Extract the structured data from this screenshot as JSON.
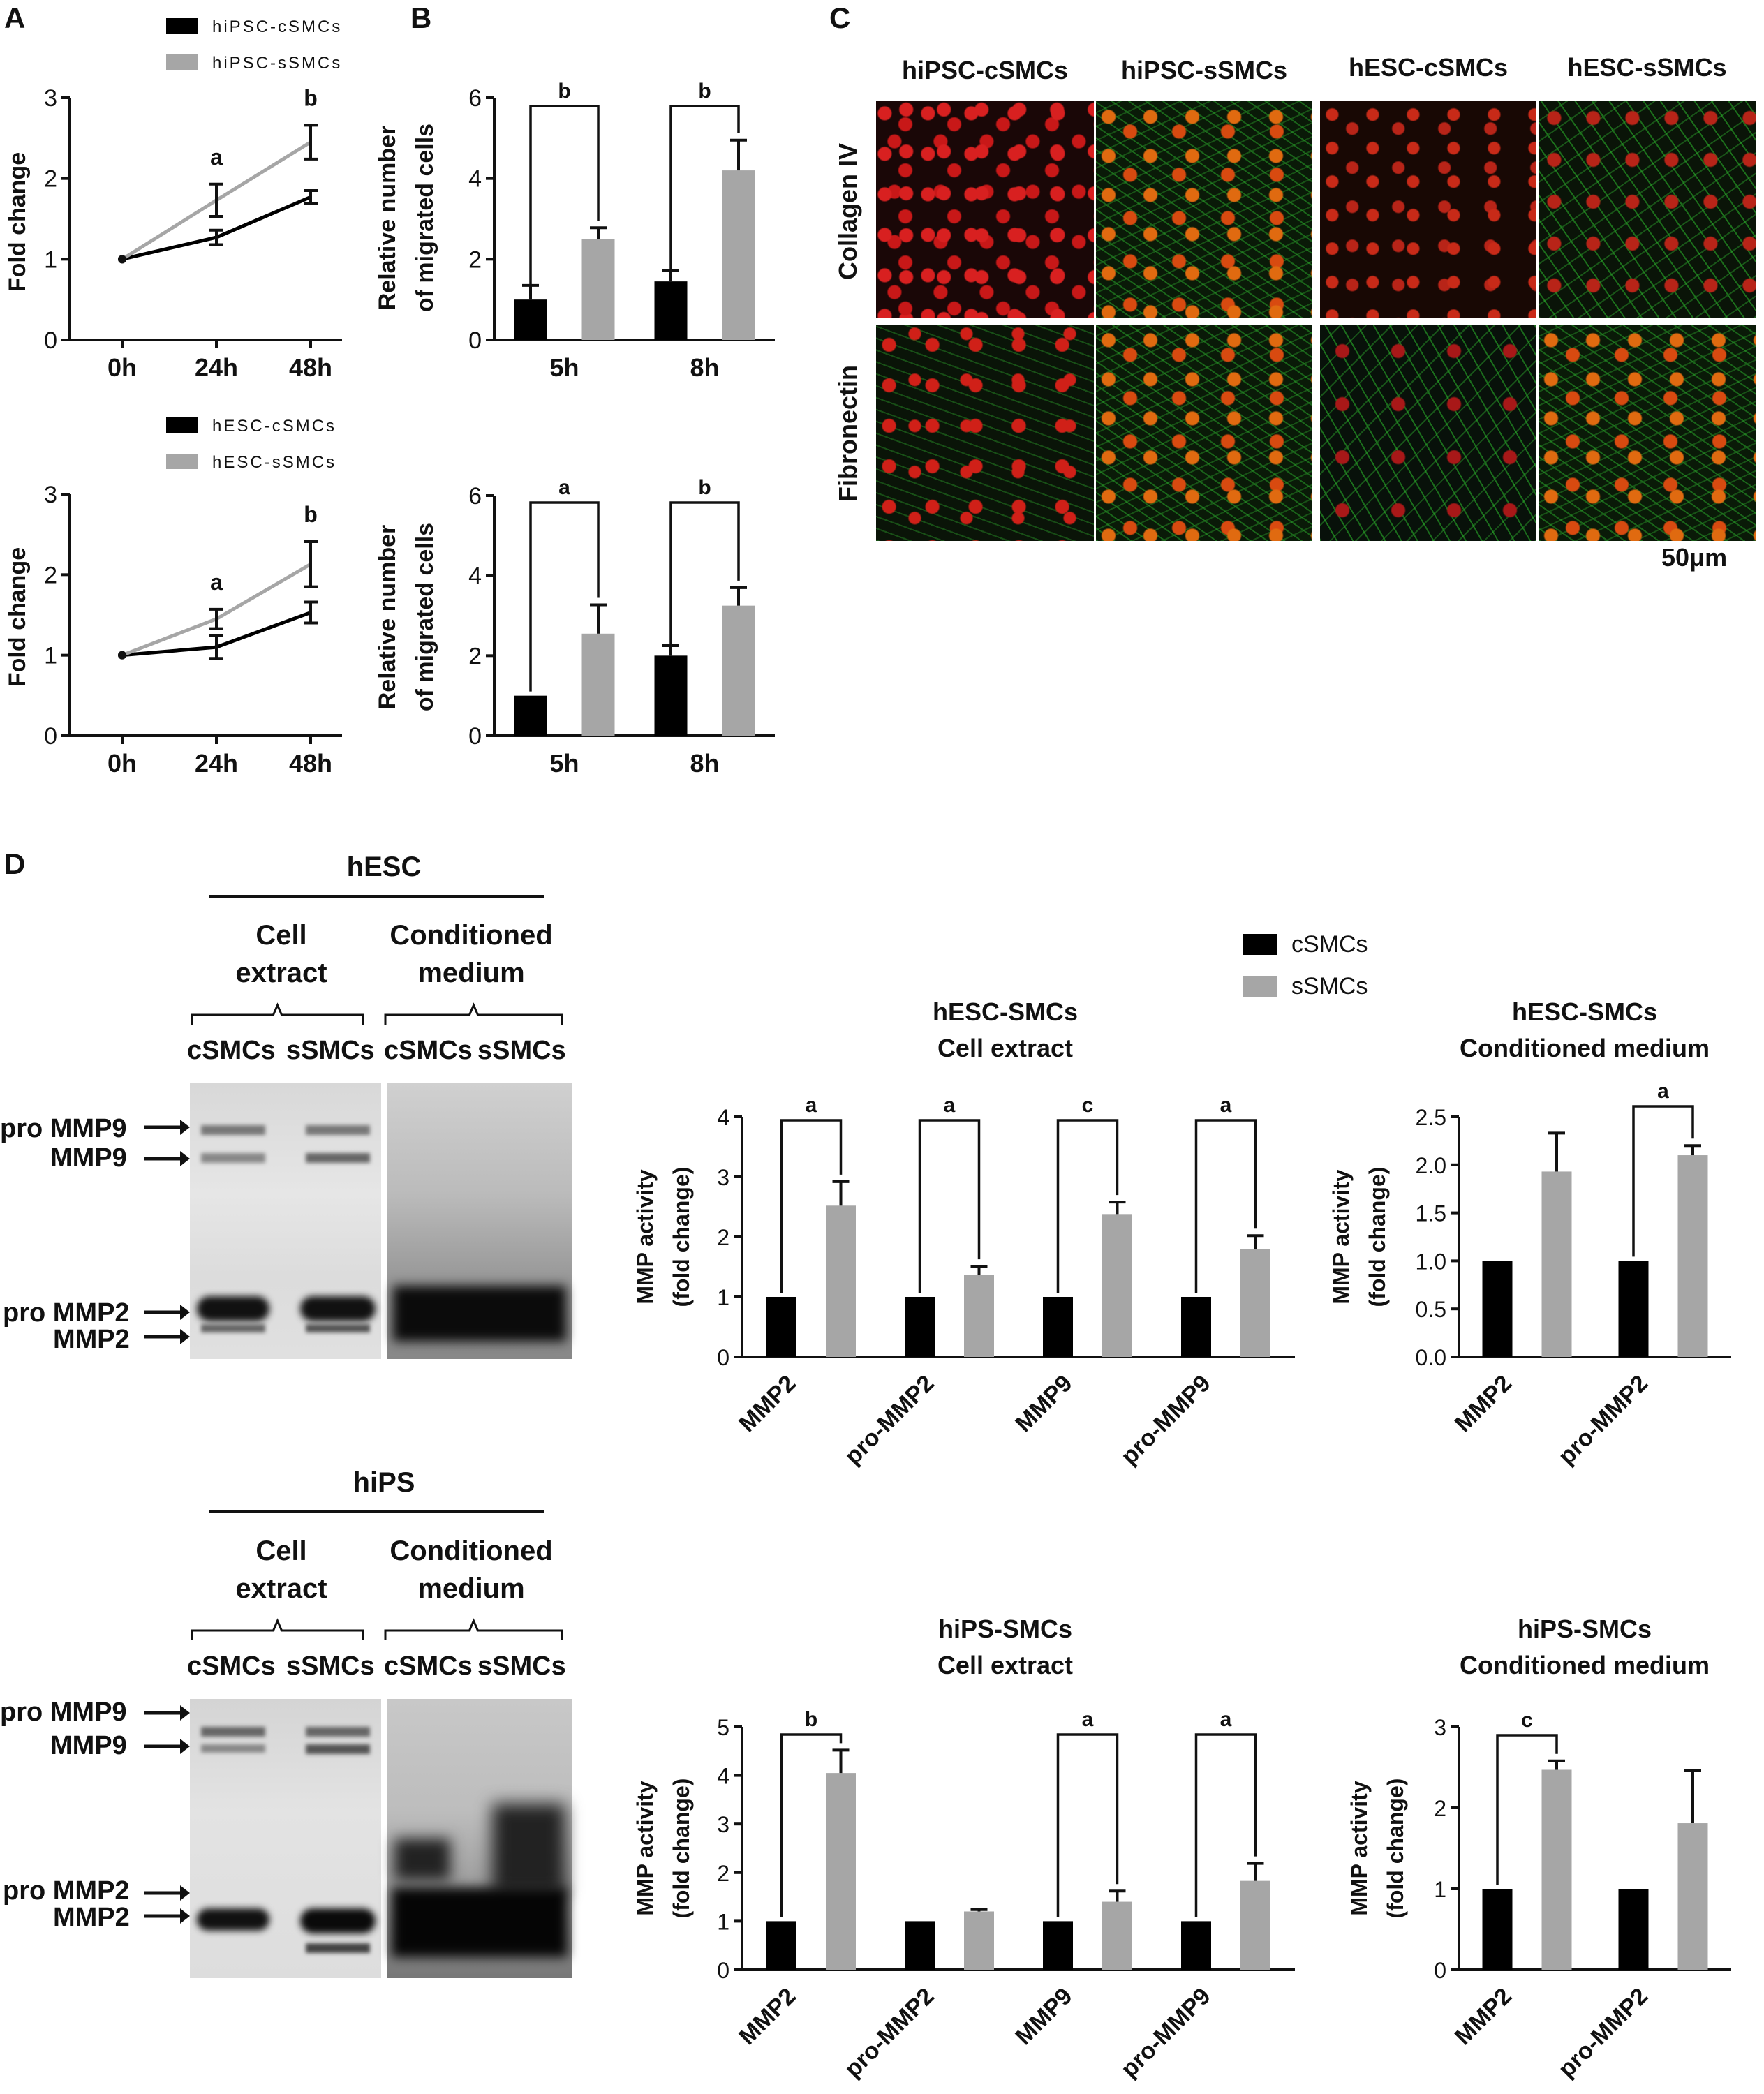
{
  "panels": {
    "A": "A",
    "B": "B",
    "C": "C",
    "D": "D"
  },
  "colors": {
    "c": "#000000",
    "s": "#a6a6a6"
  },
  "panelA_top": {
    "legend": [
      "hiPSC-cSMCs",
      "hiPSC-sSMCs"
    ],
    "ylabel": "Fold change"
  },
  "panelA_bottom": {
    "legend": [
      "hESC-cSMCs",
      "hESC-sSMCs"
    ],
    "ylabel": "Fold change"
  },
  "panelB": {
    "ylabel_line1": "Relative number",
    "ylabel_line2": "of migrated cells"
  },
  "panelC": {
    "columns": [
      "hiPSC-cSMCs",
      "hiPSC-sSMCs",
      "hESC-cSMCs",
      "hESC-sSMCs"
    ],
    "rows": [
      "Collagen IV",
      "Fibronectin"
    ],
    "scale_bar": "50μm"
  },
  "panelD": {
    "gels": [
      {
        "title": "hESC",
        "groups": [
          [
            "Cell",
            "extract"
          ],
          [
            "Conditioned",
            "medium"
          ]
        ],
        "lanes": [
          "cSMCs",
          "sSMCs",
          "cSMCs",
          "sSMCs"
        ],
        "bands": [
          "pro MMP9",
          "MMP9",
          "pro MMP2",
          "MMP2"
        ]
      },
      {
        "title": "hiPS",
        "groups": [
          [
            "Cell",
            "extract"
          ],
          [
            "Conditioned",
            "medium"
          ]
        ],
        "lanes": [
          "cSMCs",
          "sSMCs",
          "cSMCs",
          "sSMCs"
        ],
        "bands": [
          "pro MMP9",
          "MMP9",
          "pro MMP2",
          "MMP2"
        ]
      }
    ],
    "legend": [
      "cSMCs",
      "sSMCs"
    ],
    "ylabel_line1": "MMP activity",
    "ylabel_line2": "(fold change)"
  },
  "chart_data": [
    {
      "id": "A_top",
      "type": "line",
      "x": [
        "0h",
        "24h",
        "48h"
      ],
      "series": [
        {
          "name": "hiPSC-cSMCs",
          "values": [
            1.0,
            1.27,
            1.77
          ],
          "err": [
            0,
            0.09,
            0.08
          ]
        },
        {
          "name": "hiPSC-sSMCs",
          "values": [
            1.0,
            1.73,
            2.45
          ],
          "err": [
            0,
            0.2,
            0.21
          ]
        }
      ],
      "ylim": [
        0,
        3
      ],
      "yticks": [
        0,
        1,
        2,
        3
      ],
      "annotations": [
        {
          "x": "24h",
          "label": "a"
        },
        {
          "x": "48h",
          "label": "b"
        }
      ]
    },
    {
      "id": "A_bottom",
      "type": "line",
      "x": [
        "0h",
        "24h",
        "48h"
      ],
      "series": [
        {
          "name": "hESC-cSMCs",
          "values": [
            1.0,
            1.1,
            1.53
          ],
          "err": [
            0,
            0.14,
            0.13
          ]
        },
        {
          "name": "hESC-sSMCs",
          "values": [
            1.0,
            1.45,
            2.13
          ],
          "err": [
            0,
            0.12,
            0.28
          ]
        }
      ],
      "ylim": [
        0,
        3
      ],
      "yticks": [
        0,
        1,
        2,
        3
      ],
      "annotations": [
        {
          "x": "24h",
          "label": "a"
        },
        {
          "x": "48h",
          "label": "b"
        }
      ]
    },
    {
      "id": "B_top",
      "type": "bar",
      "categories": [
        "5h",
        "8h"
      ],
      "series": [
        {
          "values": [
            1.0,
            1.45
          ],
          "err": [
            0.35,
            0.28
          ]
        },
        {
          "values": [
            2.5,
            4.2
          ],
          "err": [
            0.28,
            0.75
          ]
        }
      ],
      "ylim": [
        0,
        6
      ],
      "yticks": [
        0,
        2,
        4,
        6
      ],
      "brackets": [
        {
          "category": "5h",
          "label": "b"
        },
        {
          "category": "8h",
          "label": "b"
        }
      ]
    },
    {
      "id": "B_bottom",
      "type": "bar",
      "categories": [
        "5h",
        "8h"
      ],
      "series": [
        {
          "values": [
            1.0,
            2.0
          ],
          "err": [
            0,
            0.25
          ]
        },
        {
          "values": [
            2.55,
            3.25
          ],
          "err": [
            0.72,
            0.45
          ]
        }
      ],
      "ylim": [
        0,
        6
      ],
      "yticks": [
        0,
        2,
        4,
        6
      ],
      "brackets": [
        {
          "category": "5h",
          "label": "a"
        },
        {
          "category": "8h",
          "label": "b"
        }
      ]
    },
    {
      "id": "D_hESC_cell",
      "type": "bar",
      "title": [
        "hESC-SMCs",
        "Cell extract"
      ],
      "categories": [
        "MMP2",
        "pro-MMP2",
        "MMP9",
        "pro-MMP9"
      ],
      "series": [
        {
          "name": "cSMCs",
          "values": [
            1,
            1,
            1,
            1
          ],
          "err": [
            0,
            0,
            0,
            0
          ]
        },
        {
          "name": "sSMCs",
          "values": [
            2.52,
            1.37,
            2.38,
            1.8
          ],
          "err": [
            0.4,
            0.14,
            0.2,
            0.22
          ]
        }
      ],
      "ylim": [
        0,
        4
      ],
      "yticks": [
        "0",
        "1",
        "2",
        "3",
        "4"
      ],
      "brackets": [
        {
          "category": "MMP2",
          "label": "a"
        },
        {
          "category": "pro-MMP2",
          "label": "a"
        },
        {
          "category": "MMP9",
          "label": "c"
        },
        {
          "category": "pro-MMP9",
          "label": "a"
        }
      ]
    },
    {
      "id": "D_hESC_cond",
      "type": "bar",
      "title": [
        "hESC-SMCs",
        "Conditioned medium"
      ],
      "categories": [
        "MMP2",
        "pro-MMP2"
      ],
      "series": [
        {
          "name": "cSMCs",
          "values": [
            1,
            1
          ],
          "err": [
            0,
            0
          ]
        },
        {
          "name": "sSMCs",
          "values": [
            1.93,
            2.1
          ],
          "err": [
            0.4,
            0.1
          ]
        }
      ],
      "ylim": [
        0,
        2.5
      ],
      "yticks": [
        "0.0",
        "0.5",
        "1.0",
        "1.5",
        "2.0",
        "2.5"
      ],
      "brackets": [
        {
          "category": "pro-MMP2",
          "label": "a"
        }
      ]
    },
    {
      "id": "D_hiPS_cell",
      "type": "bar",
      "title": [
        "hiPS-SMCs",
        "Cell extract"
      ],
      "categories": [
        "MMP2",
        "pro-MMP2",
        "MMP9",
        "pro-MMP9"
      ],
      "series": [
        {
          "name": "cSMCs",
          "values": [
            1,
            1,
            1,
            1
          ],
          "err": [
            0,
            0,
            0,
            0
          ]
        },
        {
          "name": "sSMCs",
          "values": [
            4.05,
            1.2,
            1.4,
            1.83
          ],
          "err": [
            0.47,
            0.04,
            0.22,
            0.36
          ]
        }
      ],
      "ylim": [
        0,
        5
      ],
      "yticks": [
        "0",
        "1",
        "2",
        "3",
        "4",
        "5"
      ],
      "brackets": [
        {
          "category": "MMP2",
          "label": "b"
        },
        {
          "category": "MMP9",
          "label": "a"
        },
        {
          "category": "pro-MMP9",
          "label": "a"
        }
      ]
    },
    {
      "id": "D_hiPS_cond",
      "type": "bar",
      "title": [
        "hiPS-SMCs",
        "Conditioned medium"
      ],
      "categories": [
        "MMP2",
        "pro-MMP2"
      ],
      "series": [
        {
          "name": "cSMCs",
          "values": [
            1,
            1
          ],
          "err": [
            0,
            0
          ]
        },
        {
          "name": "sSMCs",
          "values": [
            2.47,
            1.81
          ],
          "err": [
            0.11,
            0.65
          ]
        }
      ],
      "ylim": [
        0,
        3
      ],
      "yticks": [
        "0",
        "1",
        "2",
        "3"
      ],
      "brackets": [
        {
          "category": "MMP2",
          "label": "c"
        }
      ]
    }
  ]
}
